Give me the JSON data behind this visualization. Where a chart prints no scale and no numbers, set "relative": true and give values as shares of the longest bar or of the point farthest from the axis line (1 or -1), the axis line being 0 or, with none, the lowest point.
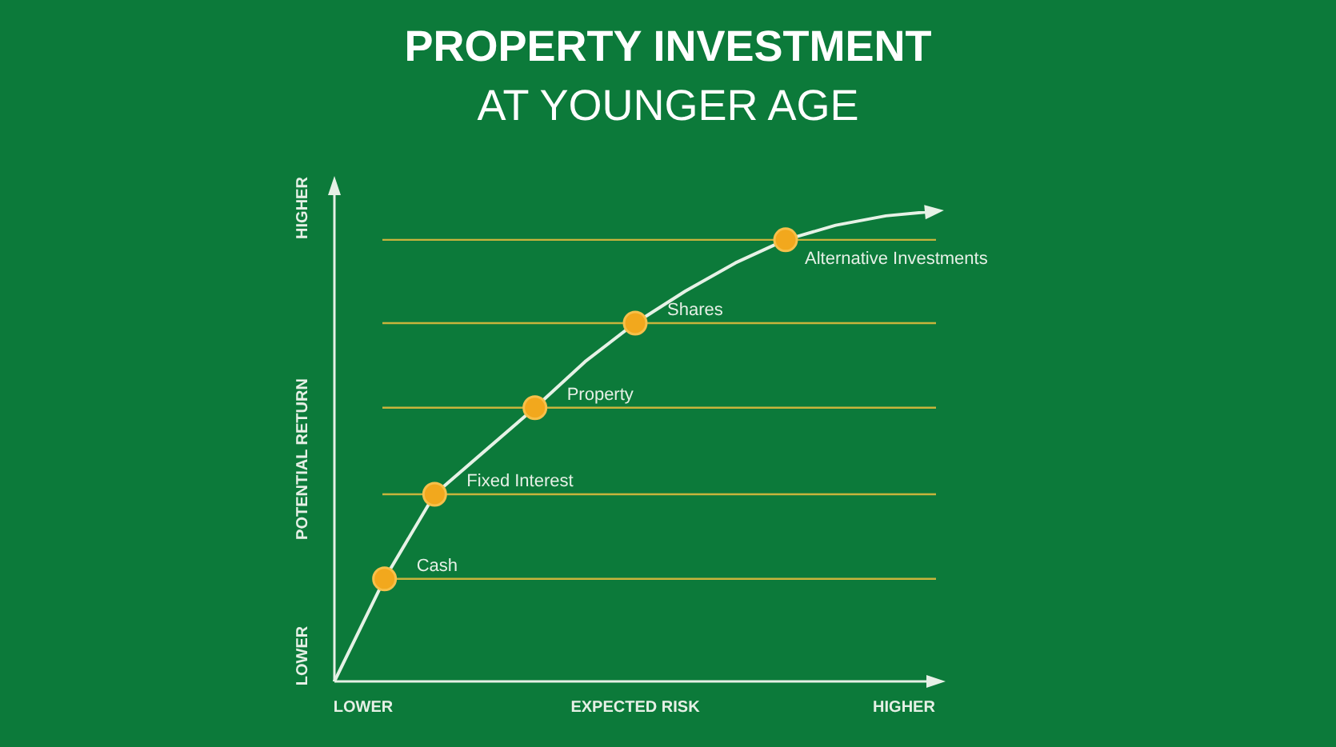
{
  "chart_data": {
    "type": "line",
    "title": "PROPERTY INVESTMENT",
    "subtitle": "AT YOUNGER AGE",
    "xlabel": "EXPECTED RISK",
    "ylabel": "POTENTIAL RETURN",
    "relative": true,
    "legend": false,
    "line_style": "solid",
    "categories": [
      null,
      null,
      null,
      null,
      null,
      null,
      null,
      null,
      null,
      null,
      null,
      null,
      null
    ],
    "series": [
      {
        "color": "#e6f2e6",
        "values": [
          0,
          0.218,
          0.398,
          0.49,
          0.582,
          0.68,
          0.762,
          0.83,
          0.89,
          0.939,
          0.97,
          0.99,
          1
        ],
        "colors": [
          null,
          "#f2a81d",
          "#f2a81d",
          null,
          "#f2a81d",
          null,
          "#f2a81d",
          null,
          null,
          "#f2a81d",
          null,
          null,
          null
        ]
      }
    ],
    "ref_lines": [
      {
        "axis": "y",
        "value": 0.218,
        "color": "#c8b43c"
      },
      {
        "axis": "y",
        "value": 0.398,
        "color": "#c8b43c"
      },
      {
        "axis": "y",
        "value": 0.582,
        "color": "#c8b43c"
      },
      {
        "axis": "y",
        "value": 0.762,
        "color": "#c8b43c"
      },
      {
        "axis": "y",
        "value": 0.939,
        "color": "#c8b43c"
      }
    ],
    "annotations": [
      "LOWER",
      "HIGHER",
      "LOWER",
      "HIGHER",
      {
        "text": "Cash",
        "y": 0.218
      },
      {
        "text": "Fixed Interest",
        "y": 0.398
      },
      {
        "text": "Property",
        "y": 0.582
      },
      {
        "text": "Shares",
        "y": 0.762
      },
      {
        "text": "Alternative Investments",
        "y": 0.939
      }
    ]
  }
}
